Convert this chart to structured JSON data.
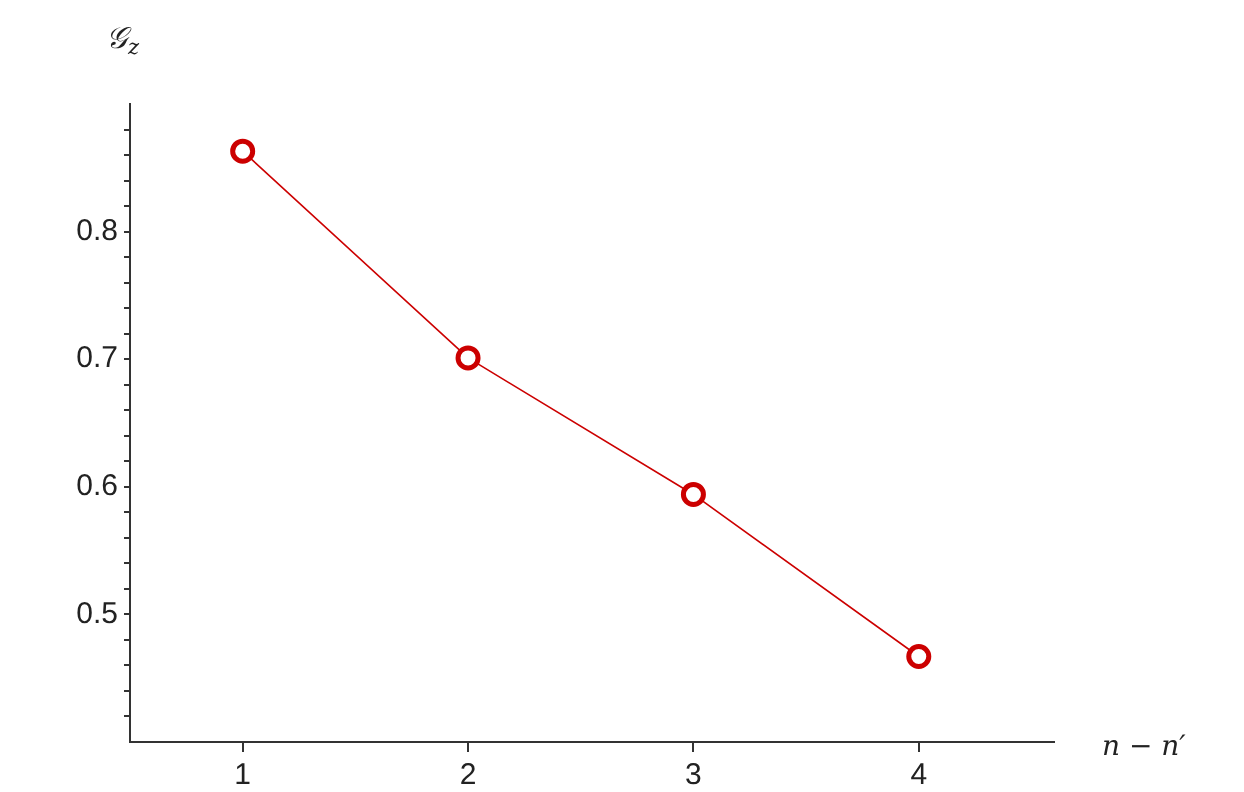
{
  "chart_data": {
    "type": "line",
    "xlabel": "n − n′",
    "ylabel": "𝒢$_{z}$",
    "x": [
      1,
      2,
      3,
      4
    ],
    "series": [
      {
        "color": "#cc0000",
        "values": [
          0.863,
          0.701,
          0.594,
          0.467
        ]
      }
    ],
    "xlim": [
      0.5,
      4.6
    ],
    "xticks": [
      1,
      2,
      3,
      4
    ],
    "ylim": [
      0.4,
      0.9
    ],
    "yticks": [
      {
        "value": 0.42,
        "label": null
      },
      {
        "value": 0.44,
        "label": null
      },
      {
        "value": 0.46,
        "label": null
      },
      {
        "value": 0.48,
        "label": null
      },
      0.5,
      {
        "value": 0.52,
        "label": null
      },
      {
        "value": 0.54,
        "label": null
      },
      {
        "value": 0.56,
        "label": null
      },
      {
        "value": 0.58,
        "label": null
      },
      0.6,
      {
        "value": 0.62,
        "label": null
      },
      {
        "value": 0.64,
        "label": null
      },
      {
        "value": 0.66,
        "label": null
      },
      {
        "value": 0.68,
        "label": null
      },
      0.7,
      {
        "value": 0.72,
        "label": null
      },
      {
        "value": 0.74,
        "label": null
      },
      {
        "value": 0.76,
        "label": null
      },
      {
        "value": 0.78,
        "label": null
      },
      0.8,
      {
        "value": 0.82,
        "label": null
      },
      {
        "value": 0.84,
        "label": null
      },
      {
        "value": 0.86,
        "label": null
      },
      {
        "value": 0.88,
        "label": null
      }
    ],
    "grid": false,
    "legend": false,
    "marker": "circle",
    "line_style": "solid"
  }
}
